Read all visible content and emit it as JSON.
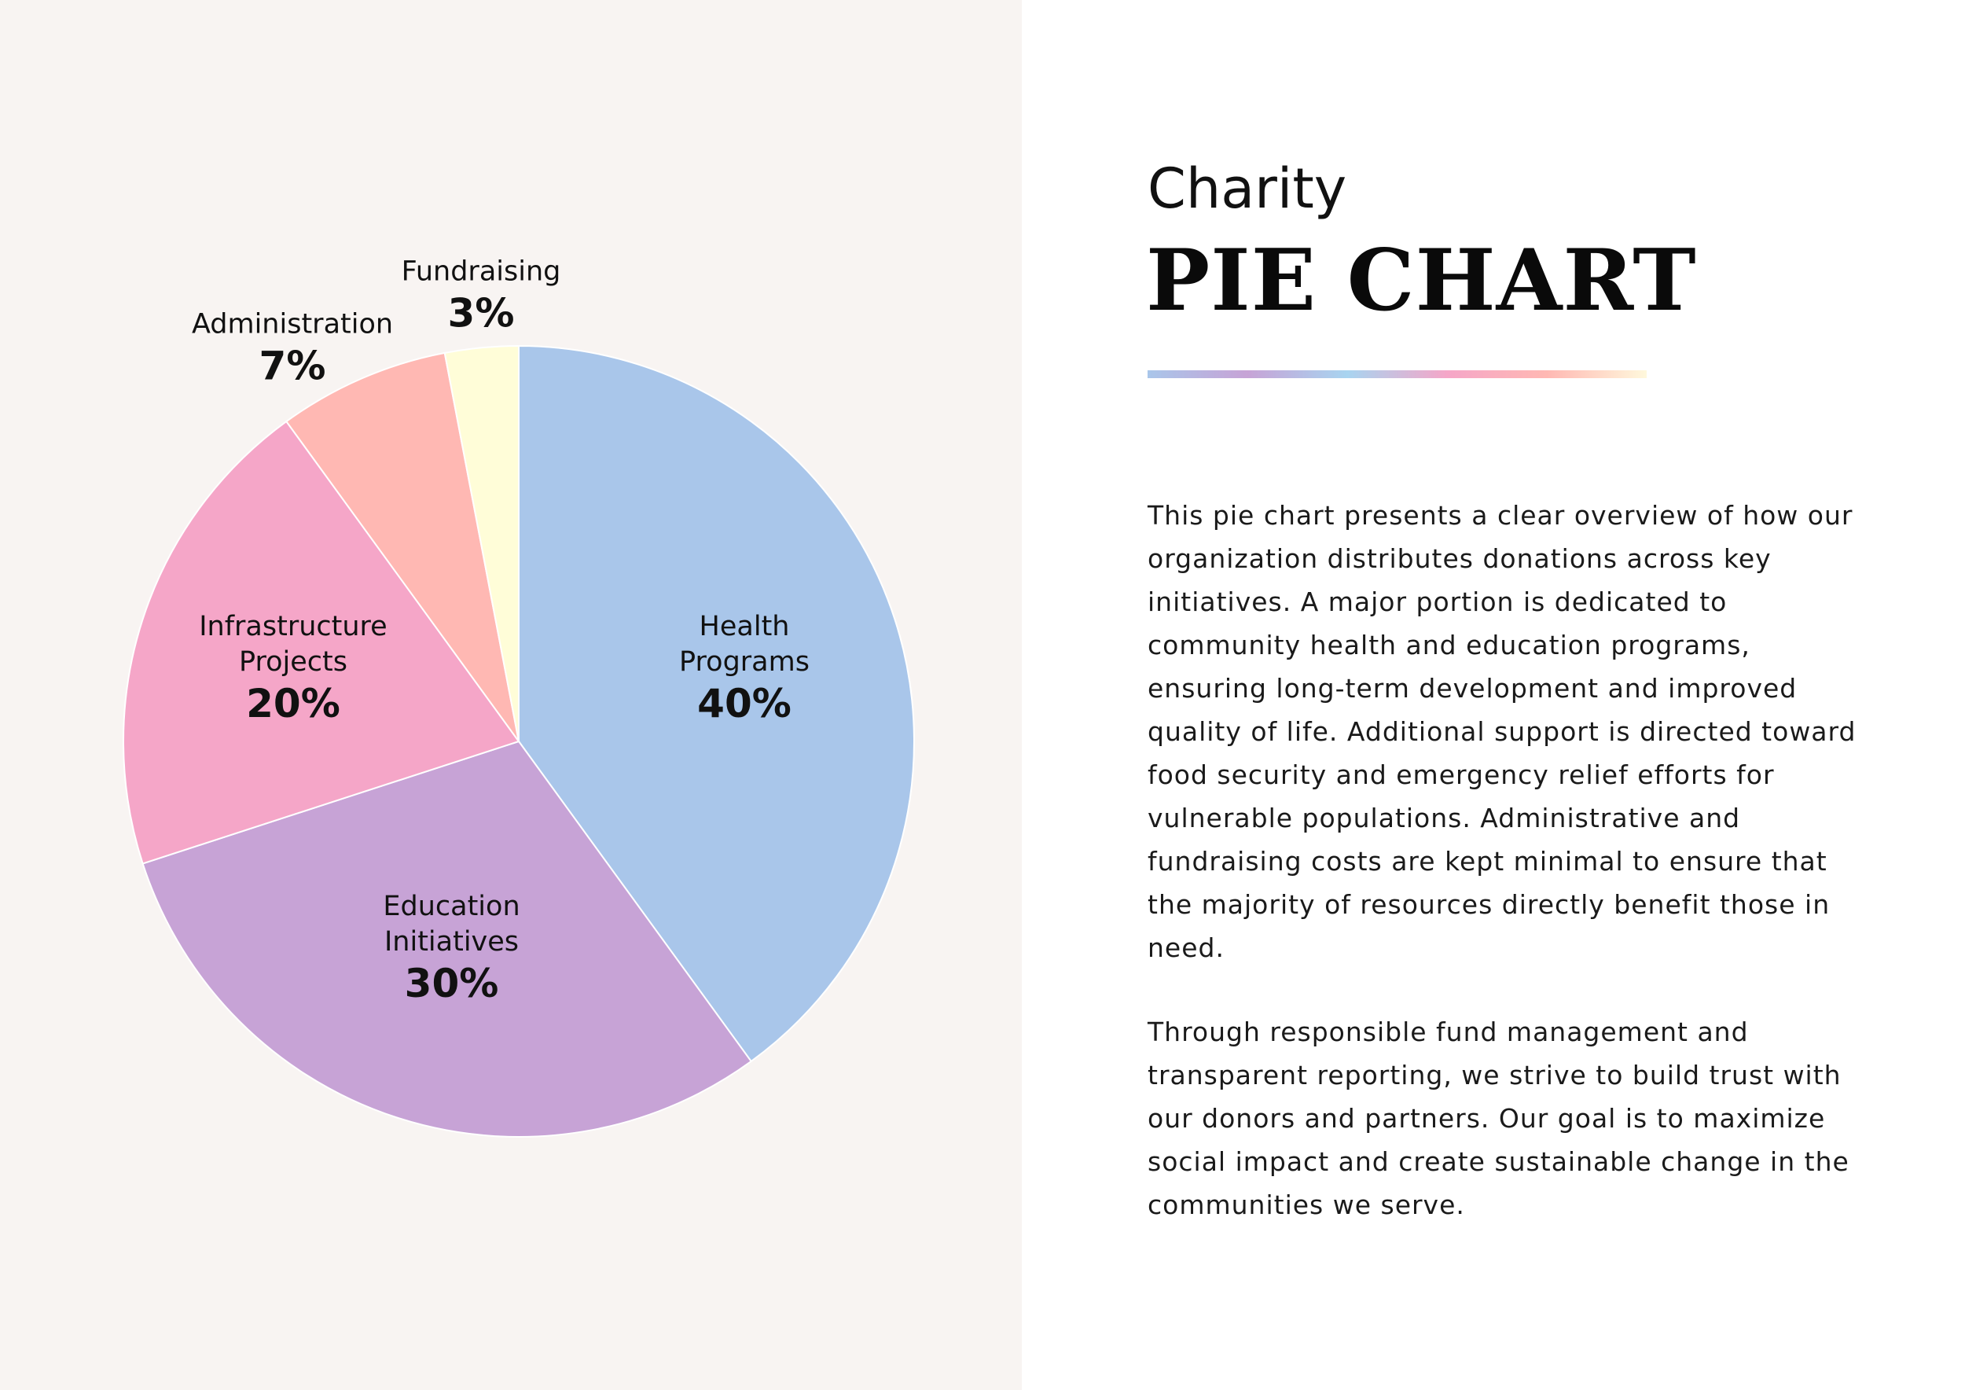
{
  "header": {
    "subtitle": "Charity",
    "title": "PIE CHART"
  },
  "accent_gradient": [
    "#a9c6ea",
    "#c7a3d6",
    "#a8d4f0",
    "#f5a6c8",
    "#ffb8b3",
    "#fff8dc"
  ],
  "description": {
    "paragraph_1": "This pie chart presents a clear overview of how our organization distributes donations across key initiatives. A major portion is dedicated to community health and education programs, ensuring long-term development and improved quality of life. Additional support is directed toward food security and emergency relief efforts for vulnerable populations. Administrative and fundraising costs are kept minimal to ensure that the majority of resources directly benefit those in need.",
    "paragraph_2": "Through responsible fund management and transparent reporting, we strive to build trust with our donors and partners. Our goal is to maximize social impact and create sustainable change in the communities we serve."
  },
  "chart_data": {
    "type": "pie",
    "title": "PIE CHART",
    "start_angle_deg": 0,
    "direction": "clockwise",
    "slices": [
      {
        "label": "Health\nPrograms",
        "value": 40,
        "value_label": "40%",
        "color": "#a9c6ea"
      },
      {
        "label": "Education\nInitiatives",
        "value": 30,
        "value_label": "30%",
        "color": "#c7a3d6"
      },
      {
        "label": "Infrastructure\nProjects",
        "value": 20,
        "value_label": "20%",
        "color": "#f5a6c8"
      },
      {
        "label": "Administration",
        "value": 7,
        "value_label": "7%",
        "color": "#ffb8b3"
      },
      {
        "label": "Fundraising",
        "value": 3,
        "value_label": "3%",
        "color": "#fffdd8"
      }
    ]
  }
}
